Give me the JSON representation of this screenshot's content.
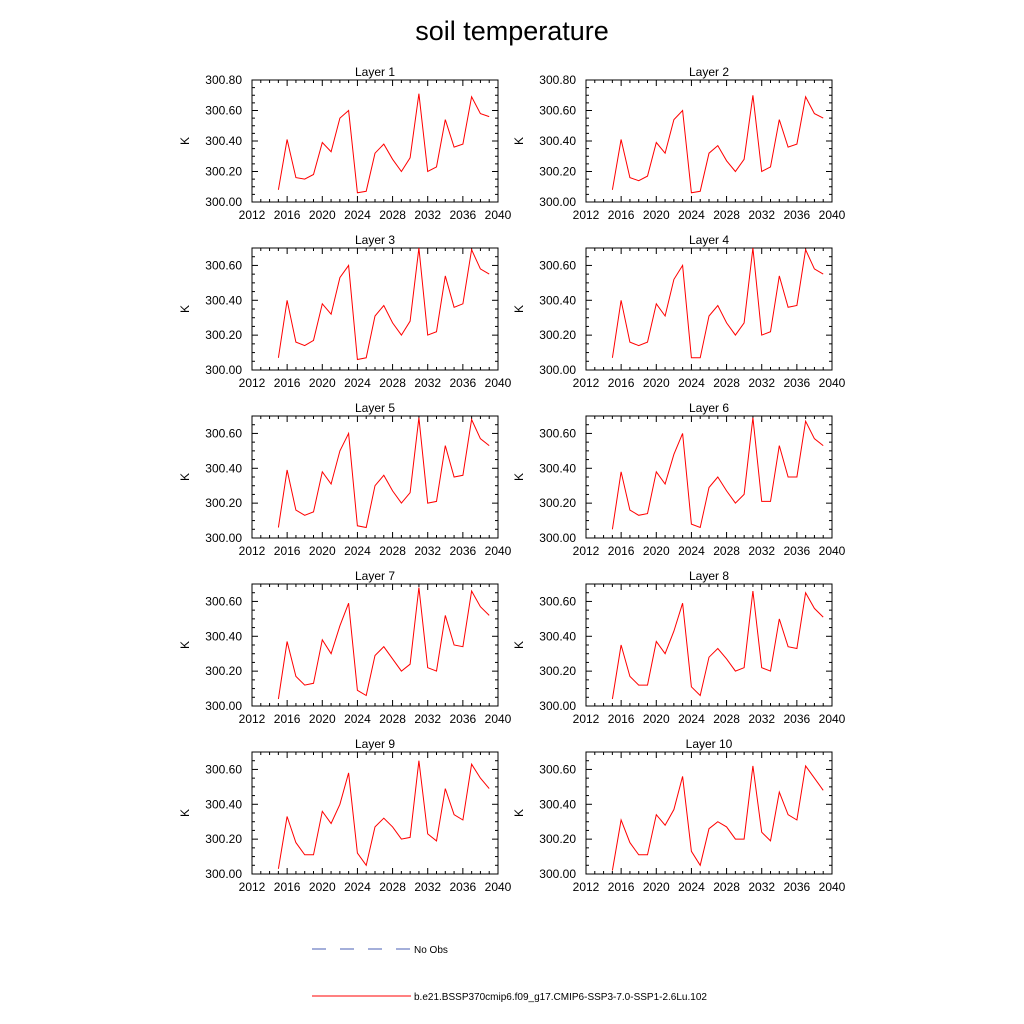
{
  "figure": {
    "title": "soil temperature"
  },
  "legend": [
    {
      "label": "No Obs",
      "color": "#4a5fb5",
      "style": "dashed"
    },
    {
      "label": "b.e21.BSSP370cmip6.f09_g17.CMIP6-SSP3-7.0-SSP1-2.6Lu.102",
      "color": "#ff0000",
      "style": "solid"
    }
  ],
  "chart_data": [
    {
      "type": "line",
      "title": "Layer 1",
      "ylabel": "K",
      "xlim": [
        2012,
        2040
      ],
      "ylim": [
        300.0,
        300.8
      ],
      "xticks": [
        "2012",
        "2016",
        "2020",
        "2024",
        "2028",
        "2032",
        "2036",
        "2040"
      ],
      "yticks": [
        "300.00",
        "300.20",
        "300.40",
        "300.60",
        "300.80"
      ],
      "grid": false,
      "series": [
        {
          "name": "b.e21.BSSP370cmip6.f09_g17.CMIP6-SSP3-7.0-SSP1-2.6Lu.102",
          "color": "#ff0000",
          "x": [
            2015,
            2016,
            2017,
            2018,
            2019,
            2020,
            2021,
            2022,
            2023,
            2024,
            2025,
            2026,
            2027,
            2028,
            2029,
            2030,
            2031,
            2032,
            2033,
            2034,
            2035,
            2036,
            2037,
            2038,
            2039
          ],
          "values": [
            300.08,
            300.41,
            300.16,
            300.15,
            300.18,
            300.39,
            300.33,
            300.55,
            300.6,
            300.06,
            300.07,
            300.32,
            300.38,
            300.28,
            300.2,
            300.29,
            300.71,
            300.2,
            300.23,
            300.54,
            300.36,
            300.38,
            300.69,
            300.58,
            300.56
          ]
        }
      ]
    },
    {
      "type": "line",
      "title": "Layer 2",
      "ylabel": "K",
      "xlim": [
        2012,
        2040
      ],
      "ylim": [
        300.0,
        300.8
      ],
      "xticks": [
        "2012",
        "2016",
        "2020",
        "2024",
        "2028",
        "2032",
        "2036",
        "2040"
      ],
      "yticks": [
        "300.00",
        "300.20",
        "300.40",
        "300.60",
        "300.80"
      ],
      "grid": false,
      "series": [
        {
          "name": "b.e21.BSSP370cmip6.f09_g17.CMIP6-SSP3-7.0-SSP1-2.6Lu.102",
          "color": "#ff0000",
          "x": [
            2015,
            2016,
            2017,
            2018,
            2019,
            2020,
            2021,
            2022,
            2023,
            2024,
            2025,
            2026,
            2027,
            2028,
            2029,
            2030,
            2031,
            2032,
            2033,
            2034,
            2035,
            2036,
            2037,
            2038,
            2039
          ],
          "values": [
            300.08,
            300.41,
            300.16,
            300.14,
            300.17,
            300.39,
            300.32,
            300.54,
            300.6,
            300.06,
            300.07,
            300.32,
            300.37,
            300.27,
            300.2,
            300.28,
            300.7,
            300.2,
            300.23,
            300.54,
            300.36,
            300.38,
            300.69,
            300.58,
            300.55
          ]
        }
      ]
    },
    {
      "type": "line",
      "title": "Layer 3",
      "ylabel": "K",
      "xlim": [
        2012,
        2040
      ],
      "ylim": [
        300.0,
        300.7
      ],
      "xticks": [
        "2012",
        "2016",
        "2020",
        "2024",
        "2028",
        "2032",
        "2036",
        "2040"
      ],
      "yticks": [
        "300.00",
        "300.20",
        "300.40",
        "300.60"
      ],
      "grid": false,
      "series": [
        {
          "name": "b.e21.BSSP370cmip6.f09_g17.CMIP6-SSP3-7.0-SSP1-2.6Lu.102",
          "color": "#ff0000",
          "x": [
            2015,
            2016,
            2017,
            2018,
            2019,
            2020,
            2021,
            2022,
            2023,
            2024,
            2025,
            2026,
            2027,
            2028,
            2029,
            2030,
            2031,
            2032,
            2033,
            2034,
            2035,
            2036,
            2037,
            2038,
            2039
          ],
          "values": [
            300.07,
            300.4,
            300.16,
            300.14,
            300.17,
            300.38,
            300.32,
            300.53,
            300.6,
            300.06,
            300.07,
            300.31,
            300.37,
            300.27,
            300.2,
            300.28,
            300.7,
            300.2,
            300.22,
            300.54,
            300.36,
            300.38,
            300.69,
            300.58,
            300.55
          ]
        }
      ]
    },
    {
      "type": "line",
      "title": "Layer 4",
      "ylabel": "K",
      "xlim": [
        2012,
        2040
      ],
      "ylim": [
        300.0,
        300.7
      ],
      "xticks": [
        "2012",
        "2016",
        "2020",
        "2024",
        "2028",
        "2032",
        "2036",
        "2040"
      ],
      "yticks": [
        "300.00",
        "300.20",
        "300.40",
        "300.60"
      ],
      "grid": false,
      "series": [
        {
          "name": "b.e21.BSSP370cmip6.f09_g17.CMIP6-SSP3-7.0-SSP1-2.6Lu.102",
          "color": "#ff0000",
          "x": [
            2015,
            2016,
            2017,
            2018,
            2019,
            2020,
            2021,
            2022,
            2023,
            2024,
            2025,
            2026,
            2027,
            2028,
            2029,
            2030,
            2031,
            2032,
            2033,
            2034,
            2035,
            2036,
            2037,
            2038,
            2039
          ],
          "values": [
            300.07,
            300.4,
            300.16,
            300.14,
            300.16,
            300.38,
            300.31,
            300.52,
            300.6,
            300.07,
            300.07,
            300.31,
            300.37,
            300.27,
            300.2,
            300.27,
            300.7,
            300.2,
            300.22,
            300.54,
            300.36,
            300.37,
            300.69,
            300.58,
            300.55
          ]
        }
      ]
    },
    {
      "type": "line",
      "title": "Layer 5",
      "ylabel": "K",
      "xlim": [
        2012,
        2040
      ],
      "ylim": [
        300.0,
        300.7
      ],
      "xticks": [
        "2012",
        "2016",
        "2020",
        "2024",
        "2028",
        "2032",
        "2036",
        "2040"
      ],
      "yticks": [
        "300.00",
        "300.20",
        "300.40",
        "300.60"
      ],
      "grid": false,
      "series": [
        {
          "name": "b.e21.BSSP370cmip6.f09_g17.CMIP6-SSP3-7.0-SSP1-2.6Lu.102",
          "color": "#ff0000",
          "x": [
            2015,
            2016,
            2017,
            2018,
            2019,
            2020,
            2021,
            2022,
            2023,
            2024,
            2025,
            2026,
            2027,
            2028,
            2029,
            2030,
            2031,
            2032,
            2033,
            2034,
            2035,
            2036,
            2037,
            2038,
            2039
          ],
          "values": [
            300.06,
            300.39,
            300.16,
            300.13,
            300.15,
            300.38,
            300.31,
            300.5,
            300.6,
            300.07,
            300.06,
            300.3,
            300.36,
            300.27,
            300.2,
            300.26,
            300.69,
            300.2,
            300.21,
            300.53,
            300.35,
            300.36,
            300.68,
            300.57,
            300.53
          ]
        }
      ]
    },
    {
      "type": "line",
      "title": "Layer 6",
      "ylabel": "K",
      "xlim": [
        2012,
        2040
      ],
      "ylim": [
        300.0,
        300.7
      ],
      "xticks": [
        "2012",
        "2016",
        "2020",
        "2024",
        "2028",
        "2032",
        "2036",
        "2040"
      ],
      "yticks": [
        "300.00",
        "300.20",
        "300.40",
        "300.60"
      ],
      "grid": false,
      "series": [
        {
          "name": "b.e21.BSSP370cmip6.f09_g17.CMIP6-SSP3-7.0-SSP1-2.6Lu.102",
          "color": "#ff0000",
          "x": [
            2015,
            2016,
            2017,
            2018,
            2019,
            2020,
            2021,
            2022,
            2023,
            2024,
            2025,
            2026,
            2027,
            2028,
            2029,
            2030,
            2031,
            2032,
            2033,
            2034,
            2035,
            2036,
            2037,
            2038,
            2039
          ],
          "values": [
            300.05,
            300.38,
            300.16,
            300.13,
            300.14,
            300.38,
            300.31,
            300.48,
            300.6,
            300.08,
            300.06,
            300.29,
            300.35,
            300.27,
            300.2,
            300.25,
            300.69,
            300.21,
            300.21,
            300.53,
            300.35,
            300.35,
            300.67,
            300.57,
            300.53
          ]
        }
      ]
    },
    {
      "type": "line",
      "title": "Layer 7",
      "ylabel": "K",
      "xlim": [
        2012,
        2040
      ],
      "ylim": [
        300.0,
        300.7
      ],
      "xticks": [
        "2012",
        "2016",
        "2020",
        "2024",
        "2028",
        "2032",
        "2036",
        "2040"
      ],
      "yticks": [
        "300.00",
        "300.20",
        "300.40",
        "300.60"
      ],
      "grid": false,
      "series": [
        {
          "name": "b.e21.BSSP370cmip6.f09_g17.CMIP6-SSP3-7.0-SSP1-2.6Lu.102",
          "color": "#ff0000",
          "x": [
            2015,
            2016,
            2017,
            2018,
            2019,
            2020,
            2021,
            2022,
            2023,
            2024,
            2025,
            2026,
            2027,
            2028,
            2029,
            2030,
            2031,
            2032,
            2033,
            2034,
            2035,
            2036,
            2037,
            2038,
            2039
          ],
          "values": [
            300.04,
            300.37,
            300.17,
            300.12,
            300.13,
            300.38,
            300.3,
            300.46,
            300.59,
            300.09,
            300.06,
            300.29,
            300.34,
            300.27,
            300.2,
            300.24,
            300.68,
            300.22,
            300.2,
            300.52,
            300.35,
            300.34,
            300.66,
            300.57,
            300.52
          ]
        }
      ]
    },
    {
      "type": "line",
      "title": "Layer 8",
      "ylabel": "K",
      "xlim": [
        2012,
        2040
      ],
      "ylim": [
        300.0,
        300.7
      ],
      "xticks": [
        "2012",
        "2016",
        "2020",
        "2024",
        "2028",
        "2032",
        "2036",
        "2040"
      ],
      "yticks": [
        "300.00",
        "300.20",
        "300.40",
        "300.60"
      ],
      "grid": false,
      "series": [
        {
          "name": "b.e21.BSSP370cmip6.f09_g17.CMIP6-SSP3-7.0-SSP1-2.6Lu.102",
          "color": "#ff0000",
          "x": [
            2015,
            2016,
            2017,
            2018,
            2019,
            2020,
            2021,
            2022,
            2023,
            2024,
            2025,
            2026,
            2027,
            2028,
            2029,
            2030,
            2031,
            2032,
            2033,
            2034,
            2035,
            2036,
            2037,
            2038,
            2039
          ],
          "values": [
            300.04,
            300.35,
            300.17,
            300.12,
            300.12,
            300.37,
            300.3,
            300.43,
            300.59,
            300.11,
            300.06,
            300.28,
            300.33,
            300.27,
            300.2,
            300.22,
            300.66,
            300.22,
            300.2,
            300.5,
            300.34,
            300.33,
            300.65,
            300.56,
            300.51
          ]
        }
      ]
    },
    {
      "type": "line",
      "title": "Layer 9",
      "ylabel": "K",
      "xlim": [
        2012,
        2040
      ],
      "ylim": [
        300.0,
        300.7
      ],
      "xticks": [
        "2012",
        "2016",
        "2020",
        "2024",
        "2028",
        "2032",
        "2036",
        "2040"
      ],
      "yticks": [
        "300.00",
        "300.20",
        "300.40",
        "300.60"
      ],
      "grid": false,
      "series": [
        {
          "name": "b.e21.BSSP370cmip6.f09_g17.CMIP6-SSP3-7.0-SSP1-2.6Lu.102",
          "color": "#ff0000",
          "x": [
            2015,
            2016,
            2017,
            2018,
            2019,
            2020,
            2021,
            2022,
            2023,
            2024,
            2025,
            2026,
            2027,
            2028,
            2029,
            2030,
            2031,
            2032,
            2033,
            2034,
            2035,
            2036,
            2037,
            2038,
            2039
          ],
          "values": [
            300.03,
            300.33,
            300.18,
            300.11,
            300.11,
            300.36,
            300.29,
            300.4,
            300.58,
            300.12,
            300.05,
            300.27,
            300.32,
            300.27,
            300.2,
            300.21,
            300.65,
            300.23,
            300.19,
            300.49,
            300.34,
            300.31,
            300.63,
            300.55,
            300.49
          ]
        }
      ]
    },
    {
      "type": "line",
      "title": "Layer 10",
      "ylabel": "K",
      "xlim": [
        2012,
        2040
      ],
      "ylim": [
        300.0,
        300.7
      ],
      "xticks": [
        "2012",
        "2016",
        "2020",
        "2024",
        "2028",
        "2032",
        "2036",
        "2040"
      ],
      "yticks": [
        "300.00",
        "300.20",
        "300.40",
        "300.60"
      ],
      "grid": false,
      "series": [
        {
          "name": "b.e21.BSSP370cmip6.f09_g17.CMIP6-SSP3-7.0-SSP1-2.6Lu.102",
          "color": "#ff0000",
          "x": [
            2015,
            2016,
            2017,
            2018,
            2019,
            2020,
            2021,
            2022,
            2023,
            2024,
            2025,
            2026,
            2027,
            2028,
            2029,
            2030,
            2031,
            2032,
            2033,
            2034,
            2035,
            2036,
            2037,
            2038,
            2039
          ],
          "values": [
            300.02,
            300.31,
            300.18,
            300.11,
            300.11,
            300.34,
            300.28,
            300.37,
            300.56,
            300.13,
            300.05,
            300.26,
            300.3,
            300.27,
            300.2,
            300.2,
            300.62,
            300.24,
            300.19,
            300.47,
            300.34,
            300.31,
            300.62,
            300.55,
            300.48
          ]
        }
      ]
    }
  ]
}
